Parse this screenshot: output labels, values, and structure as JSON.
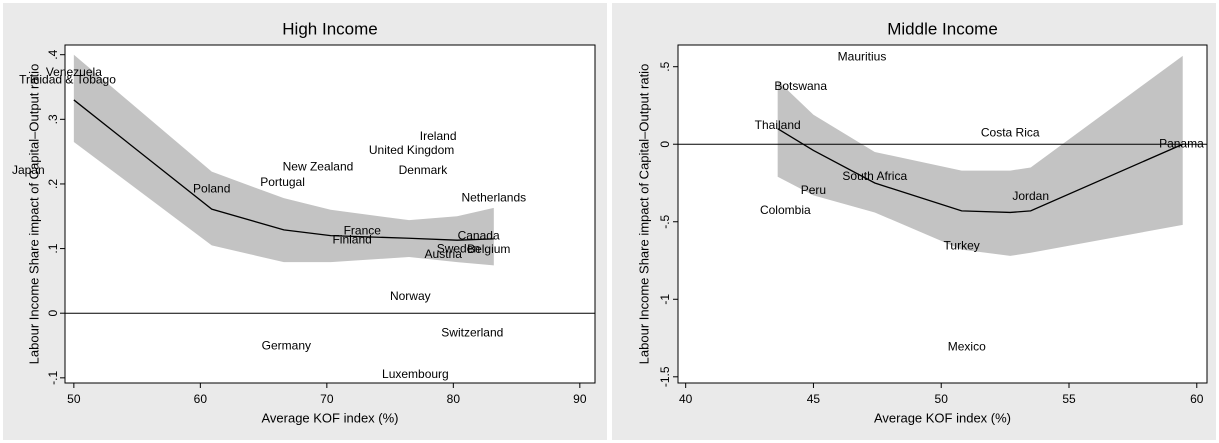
{
  "chart_data": [
    {
      "type": "scatter",
      "title": "High Income",
      "xlabel": "Average KOF index (%)",
      "ylabel": "Labour Income Share impact of Capital–Output ratio",
      "xlim": [
        49.3,
        91.2
      ],
      "ylim": [
        -0.108,
        0.415
      ],
      "xticks": [
        50,
        60,
        70,
        80,
        90
      ],
      "yticks": [
        {
          "value": 0.4,
          "label": ".4"
        },
        {
          "value": 0.3,
          "label": ".3"
        },
        {
          "value": 0.2,
          "label": ".2"
        },
        {
          "value": 0.1,
          "label": ".1"
        },
        0,
        {
          "value": -0.1,
          "label": "-.1"
        }
      ],
      "refline": 0,
      "band_color": "#c3c3c3",
      "line_color": "#000000",
      "points": {
        "labels": [
          "Venezuela",
          "Trinidad & Tobago",
          "Japan",
          "Poland",
          "Portugal",
          "New Zealand",
          "France",
          "Finland",
          "United Kingdom",
          "Ireland",
          "Denmark",
          "Netherlands",
          "Canada",
          "Sweden",
          "Belgium",
          "Austria",
          "Norway",
          "Switzerland",
          "Germany",
          "Luxembourg"
        ],
        "x": [
          50.0,
          49.5,
          46.4,
          60.9,
          66.5,
          69.3,
          72.8,
          72.0,
          76.7,
          78.8,
          77.6,
          83.2,
          82.0,
          80.4,
          82.8,
          79.2,
          76.6,
          81.5,
          66.8,
          77.0
        ],
        "y": [
          0.372,
          0.36,
          0.22,
          0.192,
          0.202,
          0.226,
          0.127,
          0.113,
          0.251,
          0.273,
          0.22,
          0.178,
          0.119,
          0.099,
          0.098,
          0.09,
          0.025,
          -0.031,
          -0.051,
          -0.095
        ]
      },
      "fit": {
        "x": [
          50.0,
          60.9,
          66.6,
          70.3,
          76.5,
          80.3,
          83.2
        ],
        "values": [
          0.33,
          0.161,
          0.129,
          0.12,
          0.116,
          0.113,
          0.115
        ],
        "upper": [
          0.4,
          0.219,
          0.178,
          0.16,
          0.144,
          0.15,
          0.163
        ],
        "lower": [
          0.265,
          0.105,
          0.079,
          0.079,
          0.087,
          0.079,
          0.074
        ]
      }
    },
    {
      "type": "scatter",
      "title": "Middle Income",
      "xlabel": "Average KOF index (%)",
      "ylabel": "Labour Income Share impact of Capital–Output ratio",
      "xlim": [
        39.7,
        60.4
      ],
      "ylim": [
        -1.54,
        0.64
      ],
      "xticks": [
        40,
        45,
        50,
        55,
        60
      ],
      "yticks": [
        {
          "value": 0.5,
          "label": ".5"
        },
        0,
        {
          "value": -0.5,
          "label": "-.5"
        },
        -1,
        -1.5
      ],
      "refline": 0,
      "band_color": "#c3c3c3",
      "line_color": "#000000",
      "points": {
        "labels": [
          "Mauritius",
          "Botswana",
          "Thailand",
          "Costa Rica",
          "Panama",
          "South Africa",
          "Peru",
          "Colombia",
          "Jordan",
          "Turkey",
          "Mexico"
        ],
        "x": [
          46.9,
          44.5,
          43.6,
          52.7,
          59.4,
          47.4,
          45.0,
          43.9,
          53.5,
          50.8,
          51.0
        ],
        "y": [
          0.56,
          0.37,
          0.12,
          0.07,
          0.0,
          -0.21,
          -0.3,
          -0.43,
          -0.34,
          -0.66,
          -1.31
        ]
      },
      "fit": {
        "x": [
          43.6,
          45.0,
          47.4,
          50.8,
          52.7,
          53.5,
          59.45
        ],
        "values": [
          0.1,
          -0.04,
          -0.25,
          -0.43,
          -0.44,
          -0.43,
          0.0
        ],
        "upper": [
          0.41,
          0.19,
          -0.05,
          -0.17,
          -0.17,
          -0.15,
          0.57
        ],
        "lower": [
          -0.21,
          -0.33,
          -0.44,
          -0.68,
          -0.72,
          -0.7,
          -0.52
        ]
      }
    }
  ]
}
